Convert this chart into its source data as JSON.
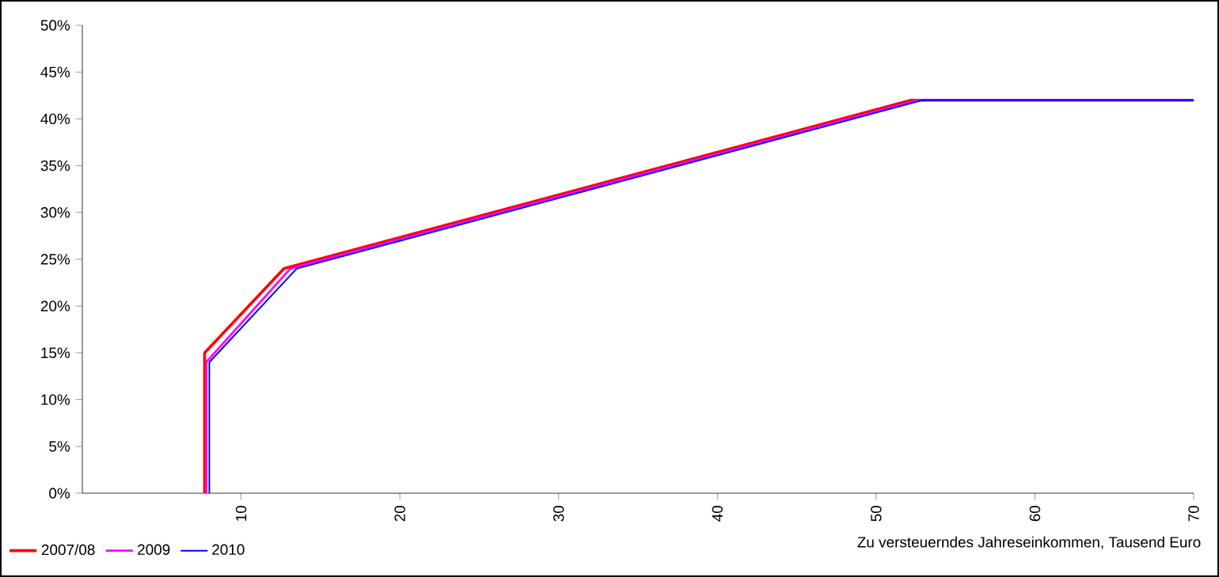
{
  "chart_data": {
    "type": "line",
    "xlabel": "Zu versteuerndes Jahreseinkommen, Tausend Euro",
    "xlim": [
      0,
      70
    ],
    "xticks": [
      10,
      20,
      30,
      40,
      50,
      60,
      70
    ],
    "ylim": [
      0,
      50
    ],
    "yticks": [
      {
        "value": 0,
        "label": "0%"
      },
      {
        "value": 5,
        "label": "5%"
      },
      {
        "value": 10,
        "label": "10%"
      },
      {
        "value": 15,
        "label": "15%"
      },
      {
        "value": 20,
        "label": "20%"
      },
      {
        "value": 25,
        "label": "25%"
      },
      {
        "value": 30,
        "label": "30%"
      },
      {
        "value": 35,
        "label": "35%"
      },
      {
        "value": 40,
        "label": "40%"
      },
      {
        "value": 45,
        "label": "45%"
      },
      {
        "value": 50,
        "label": "50%"
      }
    ],
    "series": [
      {
        "name": "2007/08",
        "color": "#ff0000",
        "x": [
          7.7,
          7.7,
          12.7,
          52.2,
          70
        ],
        "values": [
          0,
          15,
          24,
          42,
          42
        ]
      },
      {
        "name": "2009",
        "color": "#ff00ff",
        "x": [
          7.8,
          7.8,
          13.1,
          52.6,
          70
        ],
        "values": [
          0,
          14,
          24,
          42,
          42
        ]
      },
      {
        "name": "2010",
        "color": "#0000ff",
        "x": [
          8.0,
          8.0,
          13.5,
          52.9,
          70
        ],
        "values": [
          0,
          14,
          24,
          42,
          42
        ]
      }
    ],
    "legend": "bottom left",
    "grid": false,
    "marker": "none",
    "line_style": "solid"
  }
}
